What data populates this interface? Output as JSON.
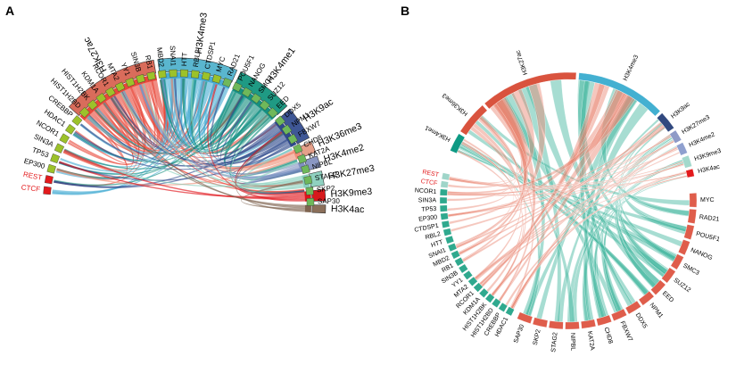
{
  "colors": {
    "black": "#000000",
    "red": "#e31a1c",
    "white": "#ffffff"
  },
  "panels": [
    {
      "label": "A",
      "top_outer": [
        {
          "name": "H3K27ac",
          "color": "#d96c5b",
          "inner": "#e8483a",
          "w": 34
        },
        {
          "name": "H3K4me3",
          "color": "#5ab6cf",
          "inner": "#48add4",
          "w": 28
        },
        {
          "name": "H3K4me1",
          "color": "#1f9a84",
          "inner": "#159080",
          "w": 20
        },
        {
          "name": "H3K9ac",
          "color": "#3f5796",
          "inner": "#2f4a8c",
          "w": 12
        },
        {
          "name": "H3K36me3",
          "color": "#e6a08a",
          "inner": "#ef8f77",
          "w": 4
        },
        {
          "name": "H3K4me2",
          "color": "#8a97c3",
          "inner": "#8090c0",
          "w": 4
        },
        {
          "name": "H3K27me3",
          "color": "#8fd1c0",
          "inner": "#86cfbb",
          "w": 5
        },
        {
          "name": "H3K9me3",
          "color": "#d7191c",
          "inner": "#e0131a",
          "w": 4
        },
        {
          "name": "H3K4ac",
          "color": "#8b6f5a",
          "inner": "#7f6450",
          "w": 1
        }
      ],
      "bottom": [
        {
          "name": "CTCF",
          "red": true
        },
        {
          "name": "REST",
          "red": true
        },
        {
          "name": "EP300"
        },
        {
          "name": "TP53"
        },
        {
          "name": "SIN3A"
        },
        {
          "name": "NCOR1"
        },
        {
          "name": "HDAC1"
        },
        {
          "name": "CREBBP"
        },
        {
          "name": "HIST1H2BD"
        },
        {
          "name": "HIST1H2BK"
        },
        {
          "name": "KDM1A"
        },
        {
          "name": "RCOR1"
        },
        {
          "name": "MTA2"
        },
        {
          "name": "YY1"
        },
        {
          "name": "SIN3B"
        },
        {
          "name": "RB1"
        },
        {
          "name": "MBD2"
        },
        {
          "name": "SNAI1"
        },
        {
          "name": "HTT"
        },
        {
          "name": "RBL2"
        },
        {
          "name": "CTDSP1"
        },
        {
          "name": "MYC"
        },
        {
          "name": "RAD21"
        },
        {
          "name": "POU5F1"
        },
        {
          "name": "NANOG"
        },
        {
          "name": "SMC3"
        },
        {
          "name": "SUZ12"
        },
        {
          "name": "EED"
        },
        {
          "name": "DDX5"
        },
        {
          "name": "NPM1"
        },
        {
          "name": "FBXW7"
        },
        {
          "name": "CHD8"
        },
        {
          "name": "KAT2A"
        },
        {
          "name": "NIPBL"
        },
        {
          "name": "STAG2"
        },
        {
          "name": "SKP2"
        },
        {
          "name": "SAP30"
        }
      ]
    },
    {
      "label": "B",
      "top_outer": [
        {
          "name": "H3K4me1",
          "color": "#0e9a84",
          "w": 5
        },
        {
          "name": "H3K36me3",
          "color": "#d9533e",
          "w": 9
        },
        {
          "name": "H3K27ac",
          "color": "#d9533e",
          "w": 26
        },
        {
          "name": "H3K4me3",
          "color": "#43b0d1",
          "w": 24
        },
        {
          "name": "H3K9ac",
          "color": "#31497f",
          "w": 5
        },
        {
          "name": "H3K27me3",
          "color": "#8e9ac7",
          "w": 3
        },
        {
          "name": "H3K4me2",
          "color": "#8fa0cf",
          "w": 3
        },
        {
          "name": "H3K9me3",
          "color": "#a3d9cc",
          "w": 3
        },
        {
          "name": "H3K4ac",
          "color": "#e31a1c",
          "w": 2
        }
      ],
      "right": [
        "MYC",
        "RAD21",
        "POU5F1",
        "NANOG",
        "SMC3",
        "SUZ12",
        "EED",
        "NPM1",
        "DDX5",
        "FBXW7",
        "CHD8",
        "KAT2A",
        "NIPBL",
        "STAG2",
        "SKP2",
        "SAP30"
      ],
      "left": [
        {
          "name": "REST",
          "red": true
        },
        {
          "name": "CTCF",
          "red": true
        },
        {
          "name": "NCOR1"
        },
        {
          "name": "SIN3A"
        },
        {
          "name": "TP53"
        },
        {
          "name": "EP300"
        },
        {
          "name": "CTDSP1"
        },
        {
          "name": "RBL2"
        },
        {
          "name": "HTT"
        },
        {
          "name": "SNAI1"
        },
        {
          "name": "MBD2"
        },
        {
          "name": "RB1"
        },
        {
          "name": "SIN3B"
        },
        {
          "name": "YY1"
        },
        {
          "name": "MTA2"
        },
        {
          "name": "RCOR1"
        },
        {
          "name": "KDM1A"
        },
        {
          "name": "HIST1H2BK"
        },
        {
          "name": "HIST1H2BD"
        },
        {
          "name": "CREBBP"
        },
        {
          "name": "HDAC1"
        }
      ]
    }
  ]
}
